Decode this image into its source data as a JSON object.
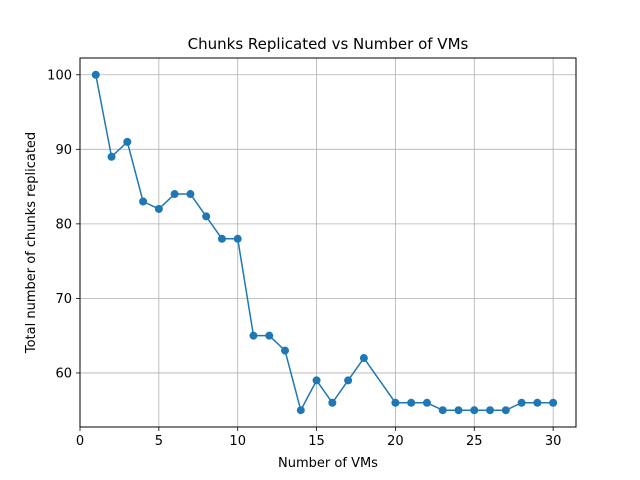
{
  "chart_data": {
    "type": "line",
    "title": "Chunks Replicated vs Number of VMs",
    "xlabel": "Number of VMs",
    "ylabel": "Total number of chunks replicated",
    "xlim": [
      0,
      31.45
    ],
    "ylim": [
      52.75,
      102.25
    ],
    "xticks": [
      0,
      5,
      10,
      15,
      20,
      25,
      30
    ],
    "yticks": [
      60,
      70,
      80,
      90,
      100
    ],
    "grid": true,
    "marker": "circle",
    "color": "#1f77b4",
    "series": [
      {
        "x": [
          1,
          2,
          3,
          4,
          5,
          6,
          7,
          8,
          9,
          10,
          11,
          12,
          13,
          14,
          15,
          16,
          17,
          18,
          20,
          21,
          22,
          23,
          24,
          25,
          26,
          27,
          28,
          29,
          30
        ],
        "y": [
          100,
          89,
          91,
          83,
          82,
          84,
          84,
          81,
          78,
          78,
          65,
          65,
          63,
          55,
          59,
          56,
          59,
          62,
          56,
          56,
          56,
          55,
          55,
          55,
          55,
          55,
          56,
          56,
          56
        ]
      }
    ]
  }
}
